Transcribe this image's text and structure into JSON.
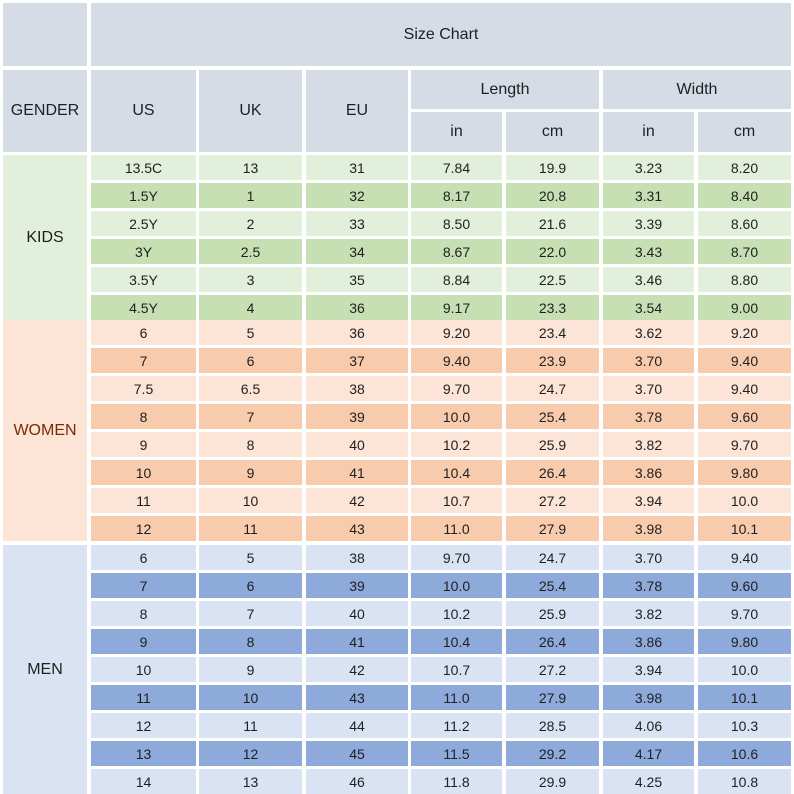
{
  "title": "Size Chart",
  "headers": {
    "gender": "GENDER",
    "us": "US",
    "uk": "UK",
    "eu": "EU",
    "length": "Length",
    "width": "Width",
    "in": "in",
    "cm": "cm"
  },
  "colors": {
    "header": "#d5dce5",
    "kids_light": "#e2efda",
    "kids_dark": "#c6e0b4",
    "women_light": "#fce4d6",
    "women_dark": "#f8cbad",
    "women_text": "#7b2a07",
    "men_light": "#dae3f3",
    "men_dark": "#8eaadb"
  },
  "groups": [
    {
      "label": "KIDS",
      "key": "kids",
      "rows": [
        [
          "13.5C",
          "13",
          "31",
          "7.84",
          "19.9",
          "3.23",
          "8.20"
        ],
        [
          "1.5Y",
          "1",
          "32",
          "8.17",
          "20.8",
          "3.31",
          "8.40"
        ],
        [
          "2.5Y",
          "2",
          "33",
          "8.50",
          "21.6",
          "3.39",
          "8.60"
        ],
        [
          "3Y",
          "2.5",
          "34",
          "8.67",
          "22.0",
          "3.43",
          "8.70"
        ],
        [
          "3.5Y",
          "3",
          "35",
          "8.84",
          "22.5",
          "3.46",
          "8.80"
        ],
        [
          "4.5Y",
          "4",
          "36",
          "9.17",
          "23.3",
          "3.54",
          "9.00"
        ]
      ]
    },
    {
      "label": "WOMEN",
      "key": "women",
      "rows": [
        [
          "6",
          "5",
          "36",
          "9.20",
          "23.4",
          "3.62",
          "9.20"
        ],
        [
          "7",
          "6",
          "37",
          "9.40",
          "23.9",
          "3.70",
          "9.40"
        ],
        [
          "7.5",
          "6.5",
          "38",
          "9.70",
          "24.7",
          "3.70",
          "9.40"
        ],
        [
          "8",
          "7",
          "39",
          "10.0",
          "25.4",
          "3.78",
          "9.60"
        ],
        [
          "9",
          "8",
          "40",
          "10.2",
          "25.9",
          "3.82",
          "9.70"
        ],
        [
          "10",
          "9",
          "41",
          "10.4",
          "26.4",
          "3.86",
          "9.80"
        ],
        [
          "11",
          "10",
          "42",
          "10.7",
          "27.2",
          "3.94",
          "10.0"
        ],
        [
          "12",
          "11",
          "43",
          "11.0",
          "27.9",
          "3.98",
          "10.1"
        ]
      ]
    },
    {
      "label": "MEN",
      "key": "men",
      "rows": [
        [
          "6",
          "5",
          "38",
          "9.70",
          "24.7",
          "3.70",
          "9.40"
        ],
        [
          "7",
          "6",
          "39",
          "10.0",
          "25.4",
          "3.78",
          "9.60"
        ],
        [
          "8",
          "7",
          "40",
          "10.2",
          "25.9",
          "3.82",
          "9.70"
        ],
        [
          "9",
          "8",
          "41",
          "10.4",
          "26.4",
          "3.86",
          "9.80"
        ],
        [
          "10",
          "9",
          "42",
          "10.7",
          "27.2",
          "3.94",
          "10.0"
        ],
        [
          "11",
          "10",
          "43",
          "11.0",
          "27.9",
          "3.98",
          "10.1"
        ],
        [
          "12",
          "11",
          "44",
          "11.2",
          "28.5",
          "4.06",
          "10.3"
        ],
        [
          "13",
          "12",
          "45",
          "11.5",
          "29.2",
          "4.17",
          "10.6"
        ],
        [
          "14",
          "13",
          "46",
          "11.8",
          "29.9",
          "4.25",
          "10.8"
        ]
      ]
    }
  ]
}
